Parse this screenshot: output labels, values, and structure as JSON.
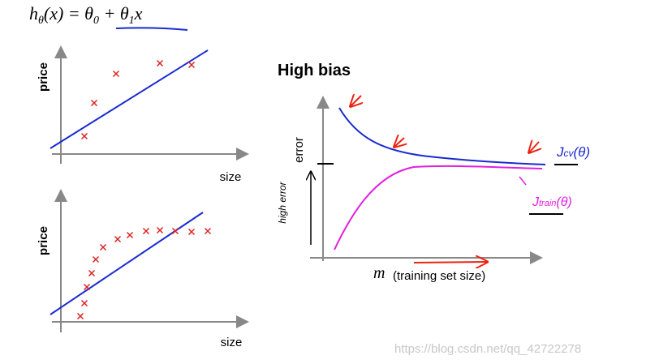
{
  "formula": {
    "parts": [
      "h",
      "θ",
      "(x) = θ",
      "0",
      " + θ",
      "1",
      "x"
    ]
  },
  "top_plot": {
    "y_label": "price",
    "x_label": "size"
  },
  "bottom_plot": {
    "y_label": "price",
    "x_label": "size"
  },
  "learning_curve": {
    "title": "High bias",
    "y_label": "error",
    "y_note": "high error",
    "x_symbol": "m",
    "x_label": "(training set size)",
    "cv_label": {
      "parts": [
        "J",
        "cv",
        "(θ)"
      ]
    },
    "train_label": {
      "parts": [
        "J",
        "train",
        "(θ)"
      ]
    }
  },
  "watermark": "https://blog.csdn.net/qq_42722278"
}
